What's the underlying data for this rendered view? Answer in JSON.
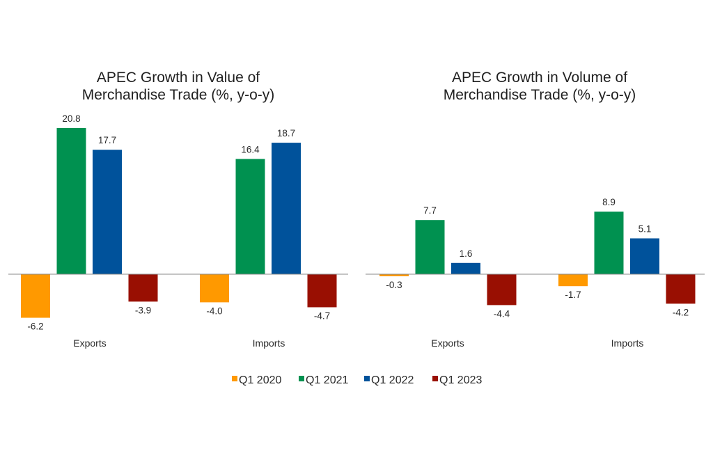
{
  "chart_data": [
    {
      "type": "bar",
      "title": "APEC Growth in Value of Merchandise Trade (%, y-o-y)",
      "title_lines": [
        "APEC Growth in Value of",
        "Merchandise Trade (%, y-o-y)"
      ],
      "xlabel": "",
      "ylabel": "",
      "categories": [
        "Exports",
        "Imports"
      ],
      "series": [
        {
          "name": "Q1 2020",
          "values": [
            -6.2,
            -4.0
          ]
        },
        {
          "name": "Q1 2021",
          "values": [
            20.8,
            16.4
          ]
        },
        {
          "name": "Q1 2022",
          "values": [
            17.7,
            18.7
          ]
        },
        {
          "name": "Q1 2023",
          "values": [
            -3.9,
            -4.7
          ]
        }
      ],
      "ylim": [
        -6.5,
        21
      ],
      "grid": false,
      "data_labels": true
    },
    {
      "type": "bar",
      "title": "APEC Growth in Volume of Merchandise Trade (%, y-o-y)",
      "title_lines": [
        "APEC Growth in Volume of",
        "Merchandise Trade (%, y-o-y)"
      ],
      "xlabel": "",
      "ylabel": "",
      "categories": [
        "Exports",
        "Imports"
      ],
      "series": [
        {
          "name": "Q1 2020",
          "values": [
            -0.3,
            -1.7
          ]
        },
        {
          "name": "Q1 2021",
          "values": [
            7.7,
            8.9
          ]
        },
        {
          "name": "Q1 2022",
          "values": [
            1.6,
            5.1
          ]
        },
        {
          "name": "Q1 2023",
          "values": [
            -4.4,
            -4.2
          ]
        }
      ],
      "ylim": [
        -6.5,
        21
      ],
      "grid": false,
      "data_labels": true
    }
  ],
  "legend": {
    "placement": "bottom-center",
    "items": [
      {
        "label": "Q1 2020",
        "color": "#FF9900"
      },
      {
        "label": "Q1 2021",
        "color": "#009150"
      },
      {
        "label": "Q1 2022",
        "color": "#00529B"
      },
      {
        "label": "Q1 2023",
        "color": "#990F02"
      }
    ]
  },
  "colors": {
    "axis": "#8a8a8a"
  }
}
